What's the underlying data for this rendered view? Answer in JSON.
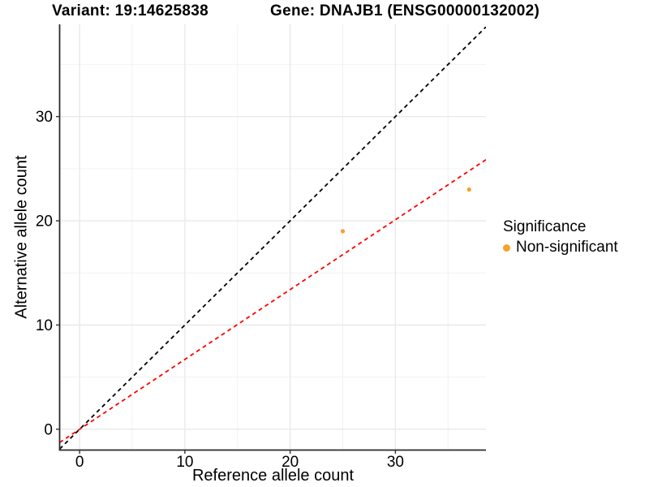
{
  "titles": {
    "variant_title": "Variant: 19:14625838",
    "gene_title": "Gene: DNAJB1 (ENSG00000132002)"
  },
  "legend": {
    "title": "Significance",
    "items": [
      {
        "label": "Non-significant",
        "color": "#F8A12B"
      }
    ]
  },
  "chart_data": {
    "type": "scatter",
    "title": "Variant: 19:14625838",
    "subtitle": "Gene: DNAJB1 (ENSG00000132002)",
    "xlabel": "Reference allele count",
    "ylabel": "Alternative allele count",
    "xlim": [
      -1.9,
      38.6
    ],
    "ylim": [
      -2.0,
      38.85
    ],
    "x_ticks": [
      0,
      10,
      20,
      30
    ],
    "y_ticks": [
      0,
      10,
      20,
      30
    ],
    "x_minor_ticks": [
      5,
      15,
      25,
      35
    ],
    "y_minor_ticks": [
      5,
      15,
      25,
      35
    ],
    "grid": "major+minor",
    "legend_position": "right",
    "legend_title": "Significance",
    "series": [
      {
        "name": "Non-significant",
        "color": "#F8A12B",
        "points": [
          {
            "x": 25,
            "y": 19
          },
          {
            "x": 37,
            "y": 23
          }
        ]
      }
    ],
    "lines": [
      {
        "name": "identity-line",
        "slope": 1.0,
        "intercept": 0,
        "color": "#000000",
        "style": "dashed"
      },
      {
        "name": "fit-line",
        "slope": 0.67,
        "intercept": 0,
        "color": "#FF0000",
        "style": "dashed"
      }
    ]
  }
}
